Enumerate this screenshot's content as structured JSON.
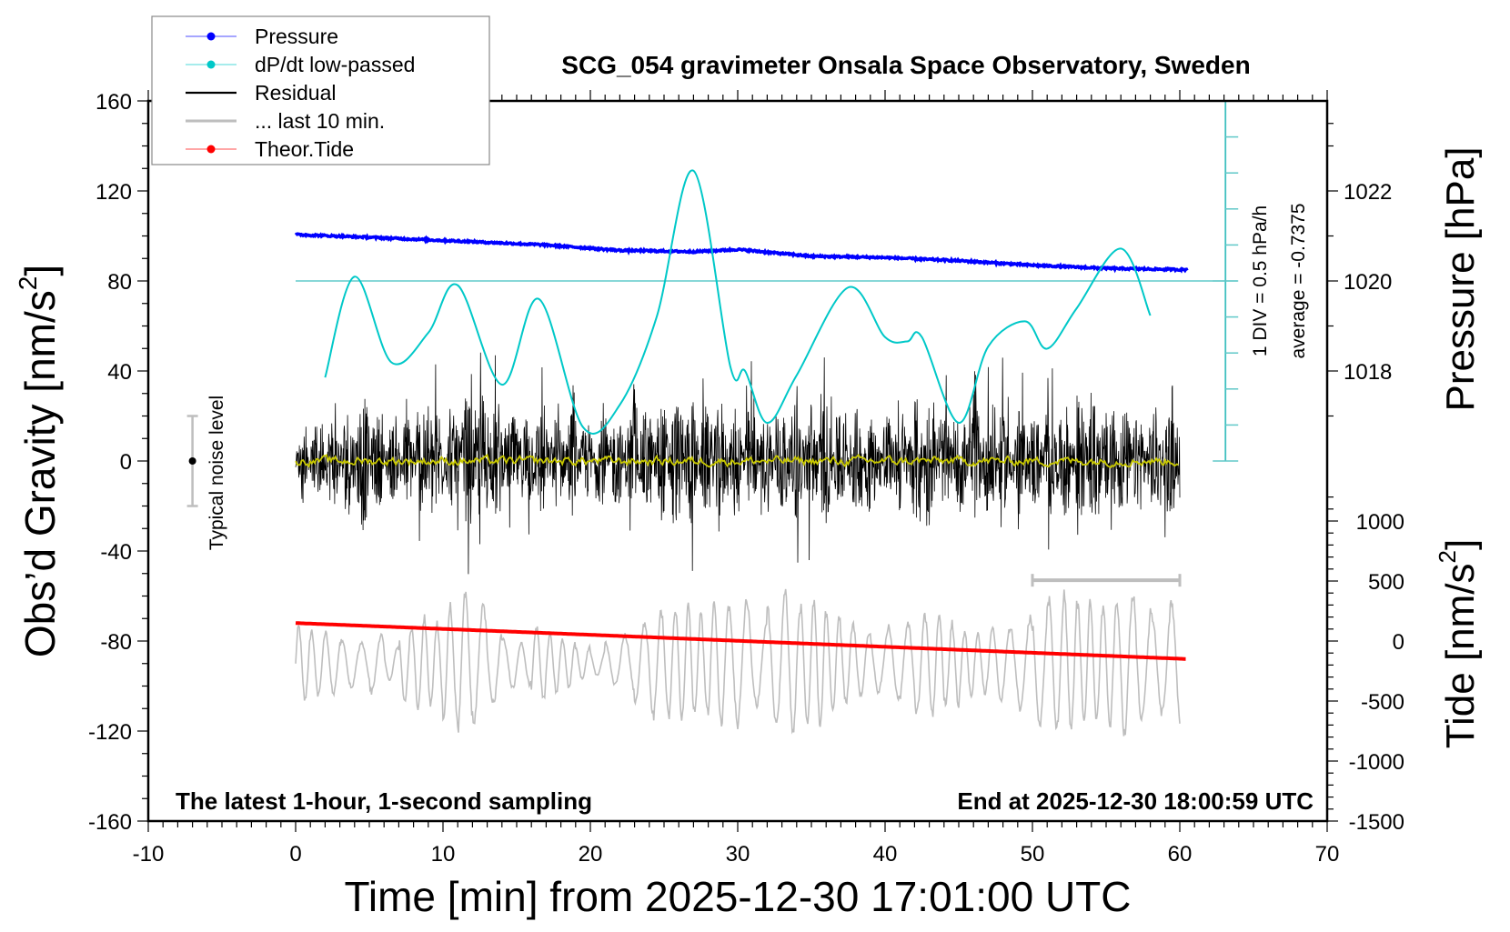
{
  "chart_data": {
    "type": "line",
    "title": "SCG_054 gravimeter Onsala Space Observatory, Sweden",
    "xlabel": "Time [min] from 2025-12-30 17:01:00 UTC",
    "ylabel": "Obs’d Gravity [nm/s",
    "ylabel_sup": "2",
    "ylabel_end": "]",
    "y2label": "Pressure [hPa]",
    "y3label": "Tide [nm/s",
    "y3label_sup": "2",
    "y3label_end": "]",
    "xlim": [
      -10,
      70
    ],
    "ylim": [
      -160,
      160
    ],
    "xticks": [
      "-10",
      "0",
      "10",
      "20",
      "30",
      "40",
      "50",
      "60",
      "70"
    ],
    "yticks": [
      "160",
      "120",
      "80",
      "40",
      "0",
      "-40",
      "-80",
      "-120",
      "-160"
    ],
    "pressure_ticks": [
      "1022",
      "1020",
      "1018"
    ],
    "tide_ticks": [
      "1000",
      "500",
      "0",
      "-500",
      "-1000",
      "-1500"
    ],
    "legend": {
      "placement": "top-left",
      "entries": [
        {
          "label": "Pressure",
          "color": "#0000ff",
          "marker": "dot"
        },
        {
          "label": "dP/dt low-passed",
          "color": "#00c8c8",
          "marker": "dot"
        },
        {
          "label": "Residual",
          "color": "#000000",
          "marker": "line"
        },
        {
          "label": "... last 10 min.",
          "color": "#bebebe",
          "marker": "line"
        },
        {
          "label": "Theor.Tide",
          "color": "#ff0000",
          "marker": "dot"
        }
      ]
    },
    "annotations": {
      "left_note": "The latest 1-hour, 1-second sampling",
      "right_note": "End at 2025-12-30 18:00:59 UTC",
      "noise_label": "Typical noise level",
      "dpdt_scale": "1 DIV = 0.5 hPa/h",
      "dpdt_average": "average = -0.7375"
    },
    "noise_level": {
      "x": -7,
      "center": 0,
      "half_range": 20
    },
    "last10_interval": {
      "x": [
        50,
        60
      ],
      "y": -53
    },
    "series": [
      {
        "name": "Pressure",
        "unit": "hPa",
        "color": "#0000ff",
        "x": [
          0,
          5,
          10,
          17,
          22,
          27,
          30,
          35,
          40,
          45,
          50,
          55,
          60.5
        ],
        "values": [
          1021.03,
          1020.97,
          1020.9,
          1020.8,
          1020.68,
          1020.65,
          1020.7,
          1020.55,
          1020.52,
          1020.45,
          1020.35,
          1020.28,
          1020.25
        ]
      },
      {
        "name": "dP/dt low-passed",
        "unit": "hPa/h relative to centre line",
        "color": "#00c8c8",
        "x": [
          2,
          4,
          6.5,
          9,
          11,
          14,
          16.5,
          19.5,
          22,
          24.5,
          27,
          29.5,
          30.5,
          32,
          34,
          37.5,
          40,
          41.5,
          42.5,
          45,
          47,
          49.5,
          51,
          53,
          56,
          58
        ],
        "values": [
          -1.34,
          0.06,
          -1.13,
          -0.72,
          -0.06,
          -1.44,
          -0.25,
          -2.03,
          -1.72,
          -0.5,
          1.53,
          -1.19,
          -1.25,
          -1.97,
          -1.31,
          -0.09,
          -0.78,
          -0.84,
          -0.78,
          -1.97,
          -0.91,
          -0.56,
          -0.94,
          -0.38,
          0.45,
          -0.48
        ]
      },
      {
        "name": "Residual",
        "unit": "nm/s2",
        "color": "#000000",
        "mean": 0,
        "amplitude_per_minute": [
          15,
          25,
          30,
          35,
          45,
          30,
          25,
          30,
          35,
          38,
          30,
          40,
          45,
          40,
          30,
          35,
          40,
          30,
          35,
          25,
          28,
          30,
          32,
          35,
          38,
          40,
          42,
          35,
          40,
          30,
          38,
          30,
          35,
          38,
          40,
          42,
          38,
          32,
          35,
          30,
          34,
          36,
          42,
          30,
          30,
          35,
          38,
          40,
          30,
          34,
          32,
          36,
          38,
          40,
          38,
          44,
          35,
          32,
          36,
          34
        ],
        "smoothed_color": "#c8c800"
      },
      {
        "name": "... last 10 min.",
        "unit": "nm/s2",
        "color": "#bebebe",
        "center": -90,
        "amplitude_per_minute": [
          18,
          16,
          15,
          12,
          10,
          14,
          8,
          18,
          22,
          20,
          28,
          34,
          28,
          20,
          12,
          10,
          18,
          14,
          12,
          8,
          6,
          10,
          14,
          20,
          26,
          26,
          28,
          24,
          30,
          28,
          30,
          20,
          30,
          34,
          28,
          32,
          24,
          20,
          16,
          14,
          18,
          20,
          24,
          26,
          20,
          16,
          14,
          18,
          18,
          22,
          30,
          32,
          34,
          30,
          28,
          30,
          34,
          28,
          24,
          30
        ]
      },
      {
        "name": "Theor.Tide",
        "unit": "nm/s2",
        "color": "#ff0000",
        "x": [
          0,
          20,
          40,
          60.5
        ],
        "values": [
          150,
          52,
          -48,
          -150
        ]
      }
    ]
  }
}
